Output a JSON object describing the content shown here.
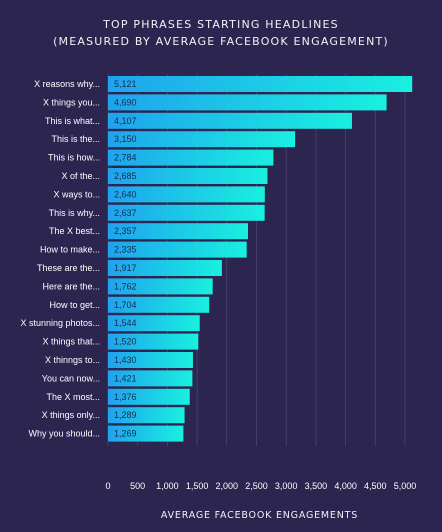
{
  "chart_data": {
    "type": "bar",
    "orientation": "horizontal",
    "title": "TOP PHRASES STARTING HEADLINES",
    "subtitle": "(MEASURED BY AVERAGE FACEBOOK ENGAGEMENT)",
    "xlabel": "AVERAGE FACEBOOK ENGAGEMENTS",
    "ylabel": "",
    "xlim": [
      0,
      5000
    ],
    "xticks": [
      0,
      500,
      1000,
      1500,
      2000,
      2500,
      3000,
      3500,
      4000,
      4500,
      5000
    ],
    "xtick_labels": [
      "0",
      "500",
      "1,000",
      "1,500",
      "2,000",
      "2,500",
      "3,000",
      "3,500",
      "4,000",
      "4,500",
      "5,000"
    ],
    "grid": true,
    "categories": [
      "X reasons why...",
      "X things you...",
      "This is what...",
      "This is the...",
      "This is how...",
      "X of the...",
      "X ways to...",
      "This is why...",
      "The X best...",
      "How to make...",
      "These are the...",
      "Here are the...",
      "How to get...",
      "X stunning photos...",
      "X things that...",
      "X thinngs to...",
      "You can now...",
      "The X most...",
      "X things only...",
      "Why you should..."
    ],
    "values": [
      5121,
      4690,
      4107,
      3150,
      2784,
      2685,
      2640,
      2637,
      2357,
      2335,
      1917,
      1762,
      1704,
      1544,
      1520,
      1430,
      1421,
      1376,
      1289,
      1269
    ],
    "value_labels": [
      "5,121",
      "4,690",
      "4,107",
      "3,150",
      "2,784",
      "2,685",
      "2,640",
      "2,637",
      "2,357",
      "2,335",
      "1,917",
      "1,762",
      "1,704",
      "1,544",
      "1,520",
      "1,430",
      "1,421",
      "1,376",
      "1,289",
      "1,269"
    ],
    "colors": {
      "background": "#2b2550",
      "bar_start": "#1fa3ee",
      "bar_end": "#19f0df",
      "grid": "#4a4470",
      "value_text": "#1b2a4e"
    }
  }
}
